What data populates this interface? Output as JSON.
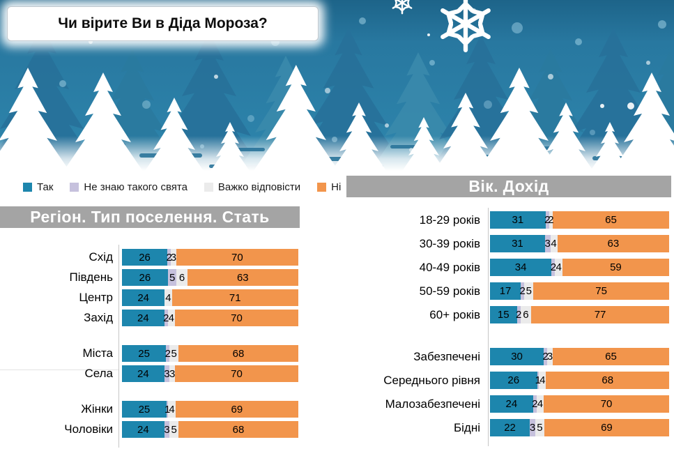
{
  "title": "Чи вірите Ви в Діда Мороза?",
  "legend": {
    "items": [
      {
        "label": "Так",
        "color": "#1d86ad"
      },
      {
        "label": "Не знаю такого свята",
        "color": "#c6c1dd"
      },
      {
        "label": "Важко відповісти",
        "color": "#ebebeb"
      },
      {
        "label": "Ні",
        "color": "#f2954c"
      }
    ]
  },
  "chart_data": {
    "type": "bar",
    "orientation": "horizontal",
    "stacked": true,
    "units": "percent",
    "series_names": [
      "Так",
      "Не знаю такого свята",
      "Важко відповісти",
      "Ні"
    ],
    "series_colors": [
      "#1d86ad",
      "#c6c1dd",
      "#ebebeb",
      "#f2954c"
    ],
    "charts": [
      {
        "title": "Регіон. Тип поселення. Стать",
        "groups": [
          {
            "rows": [
              {
                "label": "Схід",
                "values": [
                  26,
                  2,
                  3,
                  70
                ]
              },
              {
                "label": "Південь",
                "values": [
                  26,
                  5,
                  6,
                  63
                ]
              },
              {
                "label": "Центр",
                "values": [
                  24,
                  0,
                  4,
                  71
                ]
              },
              {
                "label": "Захід",
                "values": [
                  24,
                  2,
                  4,
                  70
                ]
              }
            ]
          },
          {
            "rows": [
              {
                "label": "Міста",
                "values": [
                  25,
                  2,
                  5,
                  68
                ]
              },
              {
                "label": "Села",
                "values": [
                  24,
                  3,
                  3,
                  70
                ]
              }
            ]
          },
          {
            "rows": [
              {
                "label": "Жінки",
                "values": [
                  25,
                  1,
                  4,
                  69
                ]
              },
              {
                "label": "Чоловіки",
                "values": [
                  24,
                  3,
                  5,
                  68
                ]
              }
            ]
          }
        ]
      },
      {
        "title": "Вік. Дохід",
        "groups": [
          {
            "rows": [
              {
                "label": "18-29 років",
                "values": [
                  31,
                  2,
                  2,
                  65
                ]
              },
              {
                "label": "30-39 років",
                "values": [
                  31,
                  3,
                  4,
                  63
                ]
              },
              {
                "label": "40-49 років",
                "values": [
                  34,
                  2,
                  4,
                  59
                ]
              },
              {
                "label": "50-59 років",
                "values": [
                  17,
                  2,
                  5,
                  75
                ]
              },
              {
                "label": "60+ років",
                "values": [
                  15,
                  2,
                  6,
                  77
                ]
              }
            ]
          },
          {
            "rows": [
              {
                "label": "Забезпечені",
                "values": [
                  30,
                  2,
                  3,
                  65
                ]
              },
              {
                "label": "Середнього рівня",
                "values": [
                  26,
                  1,
                  4,
                  68
                ]
              },
              {
                "label": "Малозабезпечені",
                "values": [
                  24,
                  2,
                  4,
                  70
                ]
              },
              {
                "label": "Бідні",
                "values": [
                  22,
                  3,
                  5,
                  69
                ]
              }
            ]
          }
        ]
      }
    ]
  }
}
